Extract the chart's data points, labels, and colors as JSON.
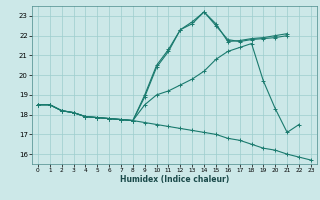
{
  "xlabel": "Humidex (Indice chaleur)",
  "bg_color": "#cce8e8",
  "line_color": "#1a7a6e",
  "grid_color": "#9ecece",
  "xlim": [
    -0.5,
    23.5
  ],
  "ylim": [
    15.5,
    23.5
  ],
  "xticks": [
    0,
    1,
    2,
    3,
    4,
    5,
    6,
    7,
    8,
    9,
    10,
    11,
    12,
    13,
    14,
    15,
    16,
    17,
    18,
    19,
    20,
    21,
    22,
    23
  ],
  "yticks": [
    16,
    17,
    18,
    19,
    20,
    21,
    22,
    23
  ],
  "lines": [
    {
      "x": [
        0,
        1,
        2,
        3,
        4,
        5,
        6,
        7,
        8,
        9,
        10,
        11,
        12,
        13,
        14,
        15,
        16,
        17,
        18,
        19,
        20,
        21,
        22,
        23
      ],
      "y": [
        18.5,
        18.5,
        18.2,
        18.1,
        17.9,
        17.85,
        17.8,
        17.75,
        17.7,
        17.6,
        17.5,
        17.4,
        17.3,
        17.2,
        17.1,
        17.0,
        16.8,
        16.7,
        16.5,
        16.3,
        16.2,
        16.0,
        15.85,
        15.7
      ]
    },
    {
      "x": [
        0,
        1,
        2,
        3,
        4,
        5,
        6,
        7,
        8,
        9,
        10,
        11,
        12,
        13,
        14,
        15,
        16,
        17,
        18,
        19,
        20,
        21,
        22
      ],
      "y": [
        18.5,
        18.5,
        18.2,
        18.1,
        17.9,
        17.85,
        17.8,
        17.75,
        17.7,
        18.5,
        19.0,
        19.2,
        19.5,
        19.8,
        20.2,
        20.8,
        21.2,
        21.4,
        21.6,
        19.7,
        18.3,
        17.1,
        17.5
      ]
    },
    {
      "x": [
        0,
        1,
        2,
        3,
        4,
        5,
        6,
        7,
        8,
        9,
        10,
        11,
        12,
        13,
        14,
        15,
        16,
        17,
        18,
        19,
        20,
        21
      ],
      "y": [
        18.5,
        18.5,
        18.2,
        18.1,
        17.9,
        17.85,
        17.8,
        17.75,
        17.7,
        19.0,
        20.5,
        21.3,
        22.3,
        22.7,
        23.2,
        22.5,
        21.8,
        21.7,
        21.8,
        21.85,
        21.9,
        22.0
      ]
    },
    {
      "x": [
        0,
        1,
        2,
        3,
        4,
        5,
        6,
        7,
        8,
        9,
        10,
        11,
        12,
        13,
        14,
        15,
        16,
        17,
        18,
        19,
        20,
        21
      ],
      "y": [
        18.5,
        18.5,
        18.2,
        18.1,
        17.9,
        17.85,
        17.8,
        17.75,
        17.7,
        18.9,
        20.4,
        21.2,
        22.3,
        22.6,
        23.2,
        22.6,
        21.7,
        21.75,
        21.85,
        21.9,
        22.0,
        22.1
      ]
    }
  ]
}
